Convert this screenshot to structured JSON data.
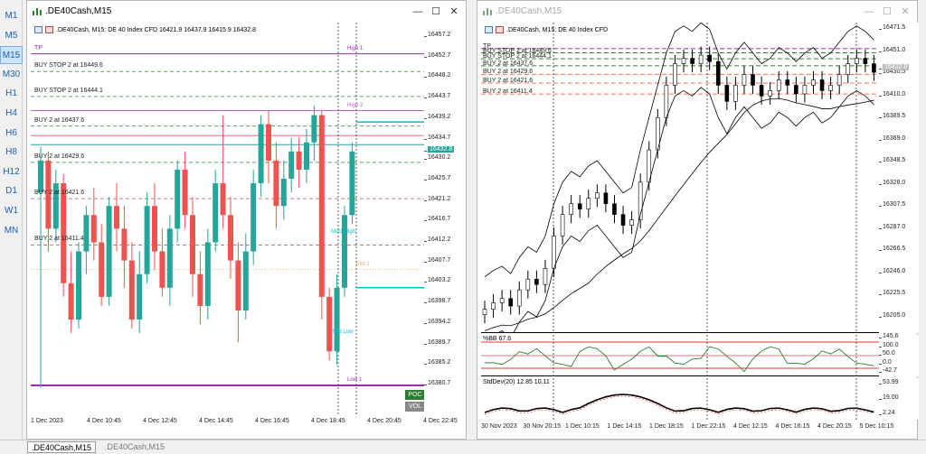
{
  "timeframes": [
    "M1",
    "M5",
    "M15",
    "M30",
    "H1",
    "H4",
    "H6",
    "H8",
    "H12",
    "D1",
    "W1",
    "MN"
  ],
  "selected_timeframe": "M15",
  "left": {
    "title": ".DE40Cash,M15",
    "header": ".DE40Cash, M15:  DE 40 Index CFD   16421.9 16437.9 16415.9 16432.8",
    "price_ticks": [
      "16457.2",
      "16452.7",
      "16448.2",
      "16443.7",
      "16439.2",
      "16434.7",
      "16430.2",
      "16425.7",
      "16421.2",
      "16416.7",
      "16412.2",
      "16407.7",
      "16403.2",
      "16398.7",
      "16394.2",
      "16389.7",
      "16385.2",
      "16380.7"
    ],
    "current_price": "16432.8",
    "time_ticks": [
      "1 Dec 2023",
      "4 Dec 10:45",
      "4 Dec 12:45",
      "4 Dec 14:45",
      "4 Dec 16:45",
      "4 Dec 18:45",
      "4 Dec 20:45",
      "4 Dec 22:45"
    ],
    "order_labels": [
      "TP",
      "BUY STOP 2 at 16449.6",
      "BUY STOP 2 at 16444.1",
      "BUY 2 at 16437.6",
      "BUY 2 at 16429.6",
      "BUY 2 at 16421.6",
      "BUY 2 at 16411.4"
    ],
    "level_labels": [
      "High 1",
      "High 2",
      "Low 1",
      "Mid1 High",
      "Mid 1",
      "Mid Low"
    ],
    "poc_label": "POC",
    "vol_label": "VOL"
  },
  "right": {
    "title": ".DE40Cash,M15",
    "header": ".DE40Cash, M15:  DE 40 Index CFD",
    "price_ticks": [
      "16471.5",
      "16451.0",
      "16430.5",
      "16410.0",
      "16389.5",
      "16369.0",
      "16348.5",
      "16328.0",
      "16307.5",
      "16287.0",
      "16266.5",
      "16246.0",
      "16225.5",
      "16205.0"
    ],
    "current_price": "16432.8",
    "order_labels": [
      "TP",
      "BUY STOP 2 at 16449.6",
      "BUY STOP 2 at 16444.1",
      "BUY 2 at 16437.6",
      "BUY 2 at 16429.6",
      "BUY 2 at 16421.6",
      "BUY 2 at 16411.4"
    ],
    "bb_label": "%BB 67.6",
    "bb_ticks": [
      "145.6",
      "100.0",
      "50.0",
      "0.0",
      "-42.7"
    ],
    "std_label": "StdDev(20) 12.85 10.11",
    "std_ticks": [
      "53.99",
      "19.00",
      "2.24"
    ],
    "time_ticks": [
      "30 Nov 2023",
      "30 Nov 20:15",
      "1 Dec 10:15",
      "1 Dec 14:15",
      "1 Dec 18:15",
      "1 Dec 22:15",
      "4 Dec 12:15",
      "4 Dec 16:15",
      "4 Dec 20:15",
      "5 Dec 10:15"
    ]
  },
  "tabs": [
    ".DE40Cash,M15",
    ".DE40Cash,M15"
  ],
  "colors": {
    "bull": "#26a69a",
    "bear": "#ef5350",
    "purple": "#9c27b0",
    "cyan": "#00bcd4",
    "green": "#2e7d32",
    "orange": "#ff7043"
  }
}
